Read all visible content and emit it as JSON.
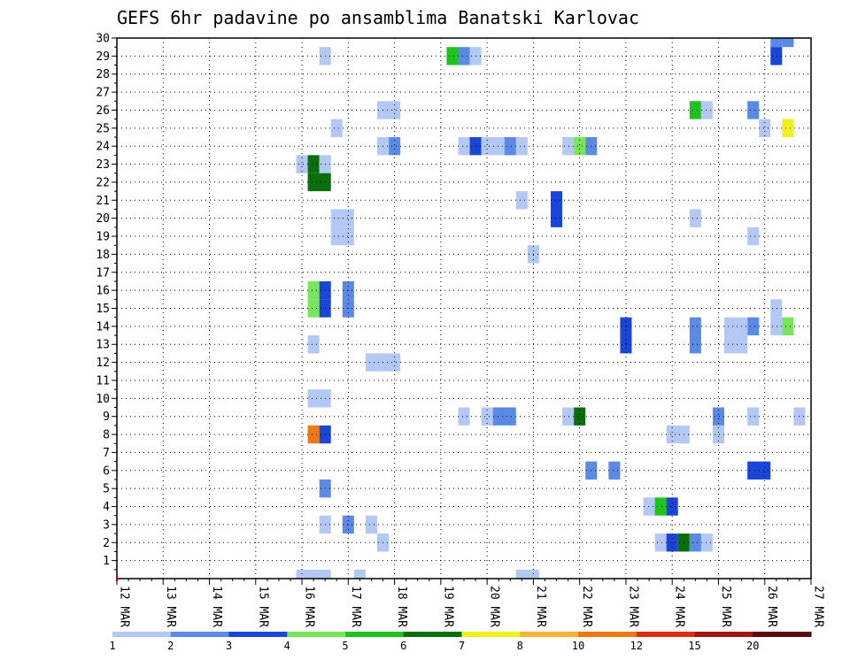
{
  "chart_data": {
    "type": "heatmap",
    "title": "GEFS 6hr padavine po ansamblima Banatski Karlovac",
    "x_tick_labels": [
      "12 MAR",
      "13 MAR",
      "14 MAR",
      "15 MAR",
      "16 MAR",
      "17 MAR",
      "18 MAR",
      "19 MAR",
      "20 MAR",
      "21 MAR",
      "22 MAR",
      "23 MAR",
      "24 MAR",
      "25 MAR",
      "26 MAR",
      "27 MAR"
    ],
    "y_tick_labels": [
      "1",
      "2",
      "3",
      "4",
      "5",
      "6",
      "7",
      "8",
      "9",
      "10",
      "11",
      "12",
      "13",
      "14",
      "15",
      "16",
      "17",
      "18",
      "19",
      "20",
      "21",
      "22",
      "23",
      "24",
      "25",
      "26",
      "27",
      "28",
      "29",
      "30"
    ],
    "x_range_days": [
      0,
      15
    ],
    "y_range": [
      0,
      30
    ],
    "time_step_hours": 6,
    "grid": "dotted",
    "legend_position": "bottom",
    "color_scale": {
      "levels": [
        "1",
        "2",
        "3",
        "4",
        "5",
        "6",
        "7",
        "8",
        "10",
        "12",
        "15",
        "20"
      ],
      "colors": [
        "#b4c8f5",
        "#5a8ae6",
        "#1a46d8",
        "#78e65a",
        "#1ec31e",
        "#0a6e0a",
        "#f0f01e",
        "#f5b432",
        "#f07814",
        "#dc2d14",
        "#a01414",
        "#5a0a0a"
      ]
    },
    "cells": [
      {
        "m": 30,
        "t": [
          57
        ],
        "v": 2
      },
      {
        "m": 30,
        "t": [
          58
        ],
        "v": 2
      },
      {
        "m": 29,
        "t": [
          18
        ],
        "v": 1
      },
      {
        "m": 29,
        "t": [
          29
        ],
        "v": 5
      },
      {
        "m": 29,
        "t": [
          30
        ],
        "v": 2
      },
      {
        "m": 29,
        "t": [
          31
        ],
        "v": 1
      },
      {
        "m": 29,
        "t": [
          57
        ],
        "v": 3
      },
      {
        "m": 26,
        "t": [
          23,
          24
        ],
        "v": 1
      },
      {
        "m": 26,
        "t": [
          50
        ],
        "v": 5
      },
      {
        "m": 26,
        "t": [
          51
        ],
        "v": 1
      },
      {
        "m": 26,
        "t": [
          55
        ],
        "v": 2
      },
      {
        "m": 25,
        "t": [
          19
        ],
        "v": 1
      },
      {
        "m": 25,
        "t": [
          56
        ],
        "v": 1
      },
      {
        "m": 25,
        "t": [
          58
        ],
        "v": 7
      },
      {
        "m": 24,
        "t": [
          23
        ],
        "v": 1
      },
      {
        "m": 24,
        "t": [
          24
        ],
        "v": 2
      },
      {
        "m": 24,
        "t": [
          30
        ],
        "v": 1
      },
      {
        "m": 24,
        "t": [
          31
        ],
        "v": 3
      },
      {
        "m": 24,
        "t": [
          32,
          33
        ],
        "v": 1
      },
      {
        "m": 24,
        "t": [
          34
        ],
        "v": 2
      },
      {
        "m": 24,
        "t": [
          35
        ],
        "v": 1
      },
      {
        "m": 24,
        "t": [
          39
        ],
        "v": 1
      },
      {
        "m": 24,
        "t": [
          40
        ],
        "v": 4
      },
      {
        "m": 24,
        "t": [
          41
        ],
        "v": 2
      },
      {
        "m": 23,
        "t": [
          16
        ],
        "v": 1
      },
      {
        "m": 23,
        "t": [
          17
        ],
        "v": 6
      },
      {
        "m": 23,
        "t": [
          18
        ],
        "v": 1
      },
      {
        "m": 22,
        "t": [
          17,
          18
        ],
        "v": 6
      },
      {
        "m": 21,
        "t": [
          35
        ],
        "v": 1
      },
      {
        "m": 21,
        "t": [
          38
        ],
        "v": 3
      },
      {
        "m": 20,
        "t": [
          38
        ],
        "v": 3
      },
      {
        "m": 20,
        "t": [
          19,
          20
        ],
        "v": 1
      },
      {
        "m": 20,
        "t": [
          50
        ],
        "v": 1
      },
      {
        "m": 19,
        "t": [
          19,
          20
        ],
        "v": 1
      },
      {
        "m": 19,
        "t": [
          55
        ],
        "v": 1
      },
      {
        "m": 18,
        "t": [
          36
        ],
        "v": 1
      },
      {
        "m": 16,
        "t": [
          17
        ],
        "v": 4
      },
      {
        "m": 16,
        "t": [
          18
        ],
        "v": 3
      },
      {
        "m": 16,
        "t": [
          20
        ],
        "v": 2
      },
      {
        "m": 15,
        "t": [
          17
        ],
        "v": 4
      },
      {
        "m": 15,
        "t": [
          18
        ],
        "v": 3
      },
      {
        "m": 15,
        "t": [
          20
        ],
        "v": 2
      },
      {
        "m": 15,
        "t": [
          57
        ],
        "v": 1
      },
      {
        "m": 14,
        "t": [
          55
        ],
        "v": 2
      },
      {
        "m": 14,
        "t": [
          57
        ],
        "v": 1
      },
      {
        "m": 14,
        "t": [
          58
        ],
        "v": 4
      },
      {
        "m": 13,
        "t": [
          17
        ],
        "v": 1
      },
      {
        "m": 13,
        "t": [
          44
        ],
        "v": 3
      },
      {
        "m": 13,
        "t": [
          50
        ],
        "v": 2
      },
      {
        "m": 13,
        "t": [
          53
        ],
        "v": 1
      },
      {
        "m": 13,
        "t": [
          54
        ],
        "v": 1
      },
      {
        "m": 14,
        "t": [
          44
        ],
        "v": 3
      },
      {
        "m": 14,
        "t": [
          50
        ],
        "v": 2
      },
      {
        "m": 14,
        "t": [
          53
        ],
        "v": 1
      },
      {
        "m": 14,
        "t": [
          54
        ],
        "v": 1
      },
      {
        "m": 12,
        "t": [
          22,
          23,
          24
        ],
        "v": 1
      },
      {
        "m": 10,
        "t": [
          17,
          18
        ],
        "v": 1
      },
      {
        "m": 9,
        "t": [
          30
        ],
        "v": 1
      },
      {
        "m": 9,
        "t": [
          32
        ],
        "v": 1
      },
      {
        "m": 9,
        "t": [
          33,
          34
        ],
        "v": 2
      },
      {
        "m": 9,
        "t": [
          39
        ],
        "v": 1
      },
      {
        "m": 9,
        "t": [
          40
        ],
        "v": 6
      },
      {
        "m": 9,
        "t": [
          52
        ],
        "v": 2
      },
      {
        "m": 9,
        "t": [
          55
        ],
        "v": 1
      },
      {
        "m": 9,
        "t": [
          59
        ],
        "v": 1
      },
      {
        "m": 8,
        "t": [
          17
        ],
        "v": 10
      },
      {
        "m": 8,
        "t": [
          18
        ],
        "v": 3
      },
      {
        "m": 8,
        "t": [
          48,
          49
        ],
        "v": 1
      },
      {
        "m": 8,
        "t": [
          52
        ],
        "v": 1
      },
      {
        "m": 6,
        "t": [
          41
        ],
        "v": 2
      },
      {
        "m": 6,
        "t": [
          43
        ],
        "v": 2
      },
      {
        "m": 6,
        "t": [
          55,
          56
        ],
        "v": 3
      },
      {
        "m": 5,
        "t": [
          18
        ],
        "v": 2
      },
      {
        "m": 4,
        "t": [
          46
        ],
        "v": 1
      },
      {
        "m": 4,
        "t": [
          47
        ],
        "v": 5
      },
      {
        "m": 4,
        "t": [
          48
        ],
        "v": 3
      },
      {
        "m": 3,
        "t": [
          18
        ],
        "v": 1
      },
      {
        "m": 3,
        "t": [
          20
        ],
        "v": 2
      },
      {
        "m": 3,
        "t": [
          22
        ],
        "v": 1
      },
      {
        "m": 2,
        "t": [
          23
        ],
        "v": 1
      },
      {
        "m": 2,
        "t": [
          47
        ],
        "v": 1
      },
      {
        "m": 2,
        "t": [
          48
        ],
        "v": 3
      },
      {
        "m": 2,
        "t": [
          49
        ],
        "v": 6
      },
      {
        "m": 2,
        "t": [
          50
        ],
        "v": 2
      },
      {
        "m": 2,
        "t": [
          51
        ],
        "v": 1
      },
      {
        "m": 0,
        "t": [
          16,
          17,
          18
        ],
        "v": 1
      },
      {
        "m": 0,
        "t": [
          21
        ],
        "v": 1
      },
      {
        "m": 0,
        "t": [
          35,
          36
        ],
        "v": 1
      }
    ]
  }
}
